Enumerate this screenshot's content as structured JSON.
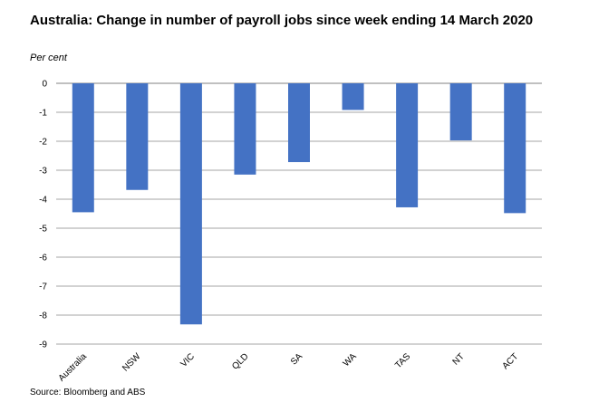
{
  "title": "Australia: Change in number of payroll jobs since week ending 14 March 2020",
  "unit_label": "Per cent",
  "source": "Source: Bloomberg and ABS",
  "chart_data": {
    "type": "bar",
    "categories": [
      "Australia",
      "NSW",
      "VIC",
      "QLD",
      "SA",
      "WA",
      "TAS",
      "NT",
      "ACT"
    ],
    "values": [
      -4.45,
      -3.68,
      -8.32,
      -3.15,
      -2.72,
      -0.92,
      -4.28,
      -1.97,
      -4.48
    ],
    "ylabel": "Per cent",
    "ylim": [
      -9,
      0
    ],
    "yticks": [
      "0",
      "-1",
      "-2",
      "-3",
      "-4",
      "-5",
      "-6",
      "-7",
      "-8",
      "-9"
    ],
    "bar_color": "#4472c4",
    "grid": true,
    "legend": "none"
  }
}
